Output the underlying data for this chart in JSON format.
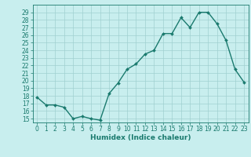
{
  "x": [
    0,
    1,
    2,
    3,
    4,
    5,
    6,
    7,
    8,
    9,
    10,
    11,
    12,
    13,
    14,
    15,
    16,
    17,
    18,
    19,
    20,
    21,
    22,
    23
  ],
  "y": [
    17.8,
    16.8,
    16.8,
    16.5,
    15.0,
    15.3,
    15.0,
    14.8,
    18.3,
    19.7,
    21.5,
    22.2,
    23.5,
    24.0,
    26.2,
    26.2,
    28.3,
    27.0,
    29.0,
    29.0,
    27.5,
    25.3,
    21.5,
    19.8
  ],
  "line_color": "#1a7a6e",
  "marker": "D",
  "marker_size": 2.0,
  "bg_color": "#c8eeee",
  "grid_color": "#a0d0d0",
  "xlabel": "Humidex (Indice chaleur)",
  "ylim": [
    14.5,
    30.0
  ],
  "xlim": [
    -0.5,
    23.5
  ],
  "yticks": [
    15,
    16,
    17,
    18,
    19,
    20,
    21,
    22,
    23,
    24,
    25,
    26,
    27,
    28,
    29
  ],
  "xticks": [
    0,
    1,
    2,
    3,
    4,
    5,
    6,
    7,
    8,
    9,
    10,
    11,
    12,
    13,
    14,
    15,
    16,
    17,
    18,
    19,
    20,
    21,
    22,
    23
  ],
  "tick_fontsize": 5.5,
  "xlabel_fontsize": 6.5,
  "spine_color": "#1a7a6e",
  "linewidth": 1.0
}
